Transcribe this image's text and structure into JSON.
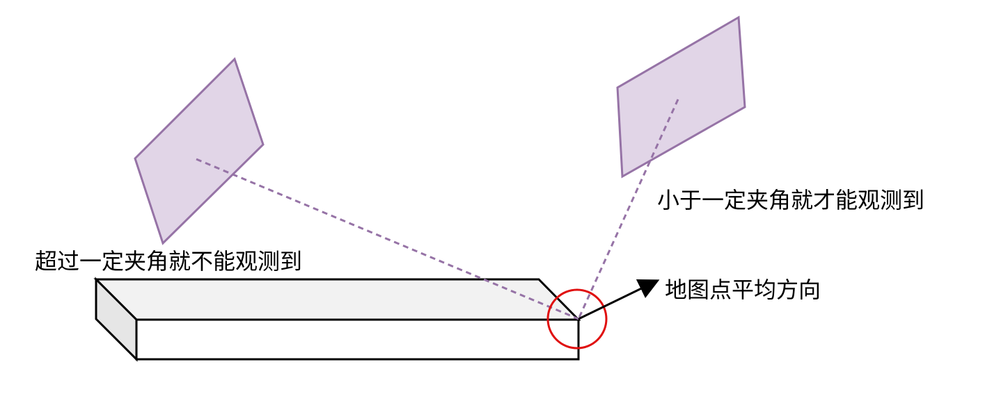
{
  "labels": {
    "beyond_angle": "超过一定夹角就不能观测到",
    "within_angle": "小于一定夹角就才能观测到",
    "map_point_normal": "地图点平均方向"
  },
  "colors": {
    "frame_fill": "#e1d5e7",
    "frame_stroke": "#9673a6",
    "ray": "#9673a6",
    "highlight_circle": "#e01010",
    "box_top": "#f2f2f2",
    "box_side": "#e6e6e6",
    "box_front": "#ffffff",
    "outline": "#000000"
  }
}
